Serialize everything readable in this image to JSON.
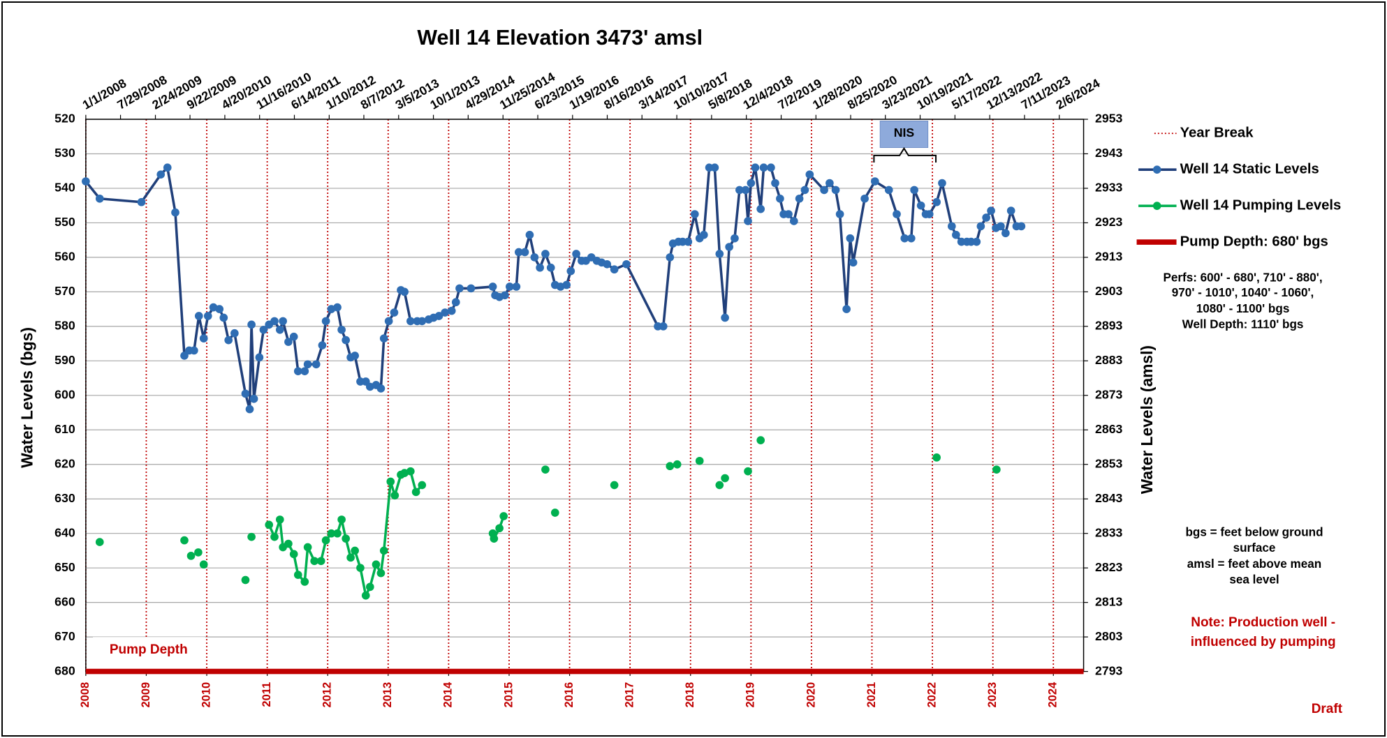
{
  "chart_data": {
    "type": "line",
    "title": "Well 14 Elevation 3473' amsl",
    "y_label": "Water Levels (bgs)",
    "y2_label": "Water Levels (amsl)",
    "xlim": [
      2008,
      2024.5
    ],
    "xticks": [
      2008,
      2009,
      2010,
      2011,
      2012,
      2013,
      2014,
      2015,
      2016,
      2017,
      2018,
      2019,
      2020,
      2021,
      2022,
      2023,
      2024
    ],
    "x2ticks": [
      {
        "value": 2008.0,
        "label": "1/1/2008"
      },
      {
        "value": 2008.574,
        "label": "7/29/2008"
      },
      {
        "value": 2009.151,
        "label": "2/24/2009"
      },
      {
        "value": 2009.723,
        "label": "9/22/2009"
      },
      {
        "value": 2010.299,
        "label": "4/20/2010"
      },
      {
        "value": 2010.874,
        "label": "11/16/2010"
      },
      {
        "value": 2011.449,
        "label": "6/14/2011"
      },
      {
        "value": 2012.025,
        "label": "1/10/2012"
      },
      {
        "value": 2012.598,
        "label": "8/7/2012"
      },
      {
        "value": 2013.173,
        "label": "3/5/2013"
      },
      {
        "value": 2013.748,
        "label": "10/1/2013"
      },
      {
        "value": 2014.323,
        "label": "4/29/2014"
      },
      {
        "value": 2014.899,
        "label": "11/25/2014"
      },
      {
        "value": 2015.474,
        "label": "6/23/2015"
      },
      {
        "value": 2016.049,
        "label": "1/19/2016"
      },
      {
        "value": 2016.623,
        "label": "8/16/2016"
      },
      {
        "value": 2017.197,
        "label": "3/14/2017"
      },
      {
        "value": 2017.773,
        "label": "10/10/2017"
      },
      {
        "value": 2018.348,
        "label": "5/8/2018"
      },
      {
        "value": 2018.923,
        "label": "12/4/2018"
      },
      {
        "value": 2019.499,
        "label": "7/2/2019"
      },
      {
        "value": 2020.074,
        "label": "1/28/2020"
      },
      {
        "value": 2020.648,
        "label": "8/25/2020"
      },
      {
        "value": 2021.222,
        "label": "3/23/2021"
      },
      {
        "value": 2021.797,
        "label": "10/19/2021"
      },
      {
        "value": 2022.373,
        "label": "5/17/2022"
      },
      {
        "value": 2022.948,
        "label": "12/13/2022"
      },
      {
        "value": 2023.523,
        "label": "7/11/2023"
      },
      {
        "value": 2024.098,
        "label": "2/6/2024"
      }
    ],
    "ylim": [
      680,
      520
    ],
    "yticks": [
      520,
      530,
      540,
      550,
      560,
      570,
      580,
      590,
      600,
      610,
      620,
      630,
      640,
      650,
      660,
      670,
      680
    ],
    "y2lim": [
      2793,
      2953
    ],
    "y2ticks": [
      2953,
      2943,
      2933,
      2923,
      2913,
      2903,
      2893,
      2883,
      2873,
      2863,
      2853,
      2843,
      2833,
      2823,
      2813,
      2803,
      2793
    ],
    "grid": true,
    "xtick_color": "#c00000",
    "series": [
      {
        "name": "Year Break",
        "kind": "vlines",
        "color": "#c00000",
        "x": [
          2008,
          2009,
          2010,
          2011,
          2012,
          2013,
          2014,
          2015,
          2016,
          2017,
          2018,
          2019,
          2020,
          2021,
          2022,
          2023,
          2024
        ]
      },
      {
        "name": "Well 14 Static Levels",
        "kind": "line",
        "color": "#203f7a",
        "marker_color": "#2f6db3",
        "x": [
          2008.0,
          2008.23,
          2008.92,
          2009.24,
          2009.35,
          2009.48,
          2009.63,
          2009.71,
          2009.79,
          2009.87,
          2009.95,
          2010.02,
          2010.11,
          2010.21,
          2010.28,
          2010.36,
          2010.46,
          2010.64,
          2010.71,
          2010.74,
          2010.78,
          2010.87,
          2010.94,
          2011.03,
          2011.12,
          2011.21,
          2011.26,
          2011.35,
          2011.44,
          2011.51,
          2011.62,
          2011.67,
          2011.81,
          2011.91,
          2011.97,
          2012.06,
          2012.16,
          2012.23,
          2012.3,
          2012.38,
          2012.45,
          2012.54,
          2012.63,
          2012.7,
          2012.8,
          2012.88,
          2012.93,
          2013.01,
          2013.1,
          2013.21,
          2013.27,
          2013.37,
          2013.48,
          2013.56,
          2013.67,
          2013.75,
          2013.84,
          2013.94,
          2014.05,
          2014.12,
          2014.18,
          2014.37,
          2014.73,
          2014.77,
          2014.84,
          2014.93,
          2015.01,
          2015.12,
          2015.16,
          2015.26,
          2015.34,
          2015.42,
          2015.51,
          2015.6,
          2015.69,
          2015.76,
          2015.85,
          2015.95,
          2016.02,
          2016.11,
          2016.2,
          2016.27,
          2016.36,
          2016.45,
          2016.53,
          2016.62,
          2016.74,
          2016.94,
          2017.46,
          2017.55,
          2017.66,
          2017.71,
          2017.8,
          2017.87,
          2017.96,
          2018.07,
          2018.15,
          2018.22,
          2018.31,
          2018.4,
          2018.48,
          2018.57,
          2018.64,
          2018.73,
          2018.81,
          2018.91,
          2018.95,
          2019.0,
          2019.07,
          2019.16,
          2019.21,
          2019.33,
          2019.4,
          2019.48,
          2019.54,
          2019.62,
          2019.71,
          2019.8,
          2019.89,
          2019.97,
          2020.21,
          2020.3,
          2020.4,
          2020.47,
          2020.58,
          2020.64,
          2020.69,
          2020.88,
          2021.05,
          2021.28,
          2021.41,
          2021.54,
          2021.65,
          2021.7,
          2021.81,
          2021.89,
          2021.95,
          2022.07,
          2022.16,
          2022.32,
          2022.39,
          2022.48,
          2022.57,
          2022.64,
          2022.73,
          2022.8,
          2022.89,
          2022.97,
          2023.05,
          2023.13,
          2023.21,
          2023.3,
          2023.39,
          2023.47
        ],
        "values": [
          538,
          543,
          544,
          536,
          534,
          547,
          588.5,
          587,
          587,
          577,
          583.5,
          577,
          574.5,
          575,
          577.5,
          584,
          582,
          599.5,
          604,
          579.5,
          601,
          589,
          581,
          579.5,
          578.5,
          581,
          578.5,
          584.5,
          583,
          593,
          593,
          591,
          591,
          585.5,
          578.5,
          575,
          574.5,
          581,
          584,
          589,
          588.5,
          596,
          596,
          597.5,
          597,
          598,
          583.5,
          578.5,
          576,
          569.5,
          570,
          578.5,
          578.5,
          578.5,
          578,
          577.5,
          577,
          576,
          575.5,
          573,
          569,
          569,
          568.5,
          571,
          571.5,
          571,
          568.5,
          568.5,
          558.5,
          558.5,
          553.5,
          560,
          563,
          559,
          563,
          568,
          568.5,
          568,
          564,
          559,
          561,
          561,
          560,
          561,
          561.5,
          562,
          563.5,
          562,
          580,
          580,
          560,
          556,
          555.5,
          555.5,
          555.5,
          547.5,
          554.5,
          553.5,
          534,
          534,
          559,
          577.5,
          557,
          554.5,
          540.5,
          540.5,
          549.5,
          538.5,
          534,
          546,
          534,
          534,
          538.5,
          543,
          547.5,
          547.5,
          549.5,
          543,
          540.5,
          536,
          540.5,
          538.5,
          540.5,
          547.5,
          575,
          554.5,
          561.5,
          543,
          538,
          540.5,
          547.5,
          554.5,
          554.5,
          540.5,
          545,
          547.5,
          547.5,
          544,
          538.5,
          551,
          553.5,
          555.5,
          555.5,
          555.5,
          555.5,
          551,
          548.5,
          546.5,
          551.5,
          551,
          553,
          546.5,
          551,
          551
        ]
      },
      {
        "name": "Well 14 Pumping Levels",
        "kind": "line",
        "color": "#00b050",
        "marker_color": "#00b050",
        "x": [
          2008.23,
          null,
          2009.63,
          null,
          2009.74,
          null,
          2009.86,
          null,
          2009.95,
          null,
          2010.64,
          null,
          2010.74,
          null,
          2011.03,
          2011.12,
          2011.21,
          2011.26,
          2011.35,
          2011.44,
          2011.51,
          2011.62,
          2011.67,
          2011.78,
          2011.89,
          2011.97,
          2012.06,
          2012.16,
          2012.23,
          2012.3,
          2012.38,
          2012.45,
          2012.54,
          2012.63,
          2012.7,
          2012.8,
          2012.88,
          2012.93,
          2013.04,
          2013.11,
          2013.21,
          2013.27,
          2013.37,
          2013.46,
          2013.56,
          null,
          2014.73,
          2014.75,
          2014.84,
          2014.91,
          null,
          2015.6,
          null,
          2015.76,
          null,
          2016.74,
          null,
          2017.66,
          null,
          2017.78,
          null,
          2018.15,
          null,
          2018.48,
          null,
          2018.57,
          null,
          2018.95,
          null,
          2019.16,
          null,
          2022.07,
          null,
          2023.06
        ],
        "values": [
          642.5,
          null,
          642,
          null,
          646.5,
          null,
          645.5,
          null,
          649,
          null,
          653.5,
          null,
          641,
          null,
          637.5,
          641,
          636,
          644,
          643,
          646,
          652,
          654,
          644,
          648,
          648,
          642,
          640,
          640,
          636,
          641.5,
          647,
          645,
          650,
          658,
          655.5,
          649,
          651.5,
          645,
          625,
          629,
          623,
          622.5,
          622,
          628,
          626,
          null,
          640,
          641.5,
          638.5,
          635,
          null,
          621.5,
          null,
          634,
          null,
          626,
          null,
          620.5,
          null,
          620,
          null,
          619,
          null,
          626,
          null,
          624,
          null,
          622,
          null,
          613,
          null,
          618,
          null,
          621.5
        ]
      },
      {
        "name": "Pump Depth: 680' bgs",
        "kind": "hline",
        "color": "#c00000",
        "value": 680
      }
    ],
    "annotations": {
      "nis": "NIS",
      "pump_label": "Pump Depth",
      "perfs": [
        "Perfs: 600' - 680', 710' - 880',",
        "970' - 1010', 1040' - 1060',",
        "1080' - 1100' bgs",
        "Well Depth: 1110' bgs"
      ],
      "definitions": [
        "bgs = feet below ground",
        "surface",
        "amsl = feet above mean",
        "sea level"
      ],
      "note": [
        "Note: Production well -",
        "influenced by pumping"
      ],
      "draft": "Draft"
    }
  }
}
